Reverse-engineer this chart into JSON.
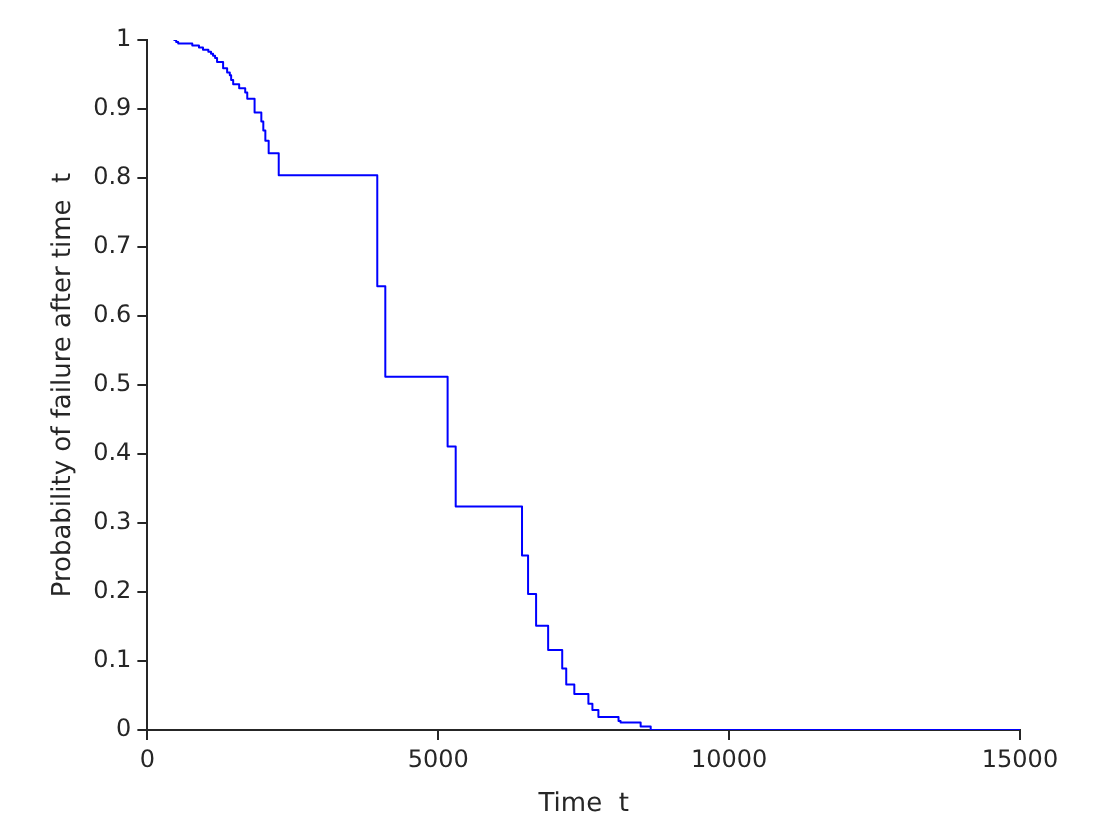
{
  "chart_data": {
    "type": "step",
    "xlabel": "Time  t",
    "ylabel": "Probability of failure after time  t",
    "x": [
      449,
      495,
      530,
      772,
      887,
      956,
      1048,
      1094,
      1129,
      1164,
      1198,
      1302,
      1371,
      1417,
      1440,
      1475,
      1578,
      1682,
      1717,
      1843,
      1959,
      1993,
      2028,
      2085,
      2258,
      3952,
      4090,
      5161,
      5300,
      6440,
      6544,
      6682,
      6889,
      7131,
      7200,
      7339,
      7581,
      7650,
      7753,
      8099,
      8134,
      8479,
      8652,
      15000
    ],
    "series": [
      {
        "color": "#0000ff",
        "values": [
          1.0,
          0.997,
          0.995,
          0.992,
          0.989,
          0.986,
          0.983,
          0.98,
          0.977,
          0.974,
          0.968,
          0.959,
          0.953,
          0.949,
          0.942,
          0.936,
          0.93,
          0.924,
          0.915,
          0.895,
          0.882,
          0.869,
          0.854,
          0.836,
          0.804,
          0.643,
          0.512,
          0.411,
          0.324,
          0.253,
          0.197,
          0.151,
          0.116,
          0.089,
          0.066,
          0.052,
          0.038,
          0.029,
          0.019,
          0.013,
          0.011,
          0.005,
          0,
          0
        ]
      }
    ],
    "xlim": [
      0,
      15000
    ],
    "xticks": [
      0,
      5000,
      10000,
      15000
    ],
    "ylim": [
      0,
      1
    ],
    "yticks": [
      0,
      0.1,
      0.2,
      0.3,
      0.4,
      0.5,
      0.6,
      0.7,
      0.8,
      0.9,
      1
    ],
    "grid": false,
    "legend": false,
    "marker": "none",
    "line_style": "solid"
  }
}
